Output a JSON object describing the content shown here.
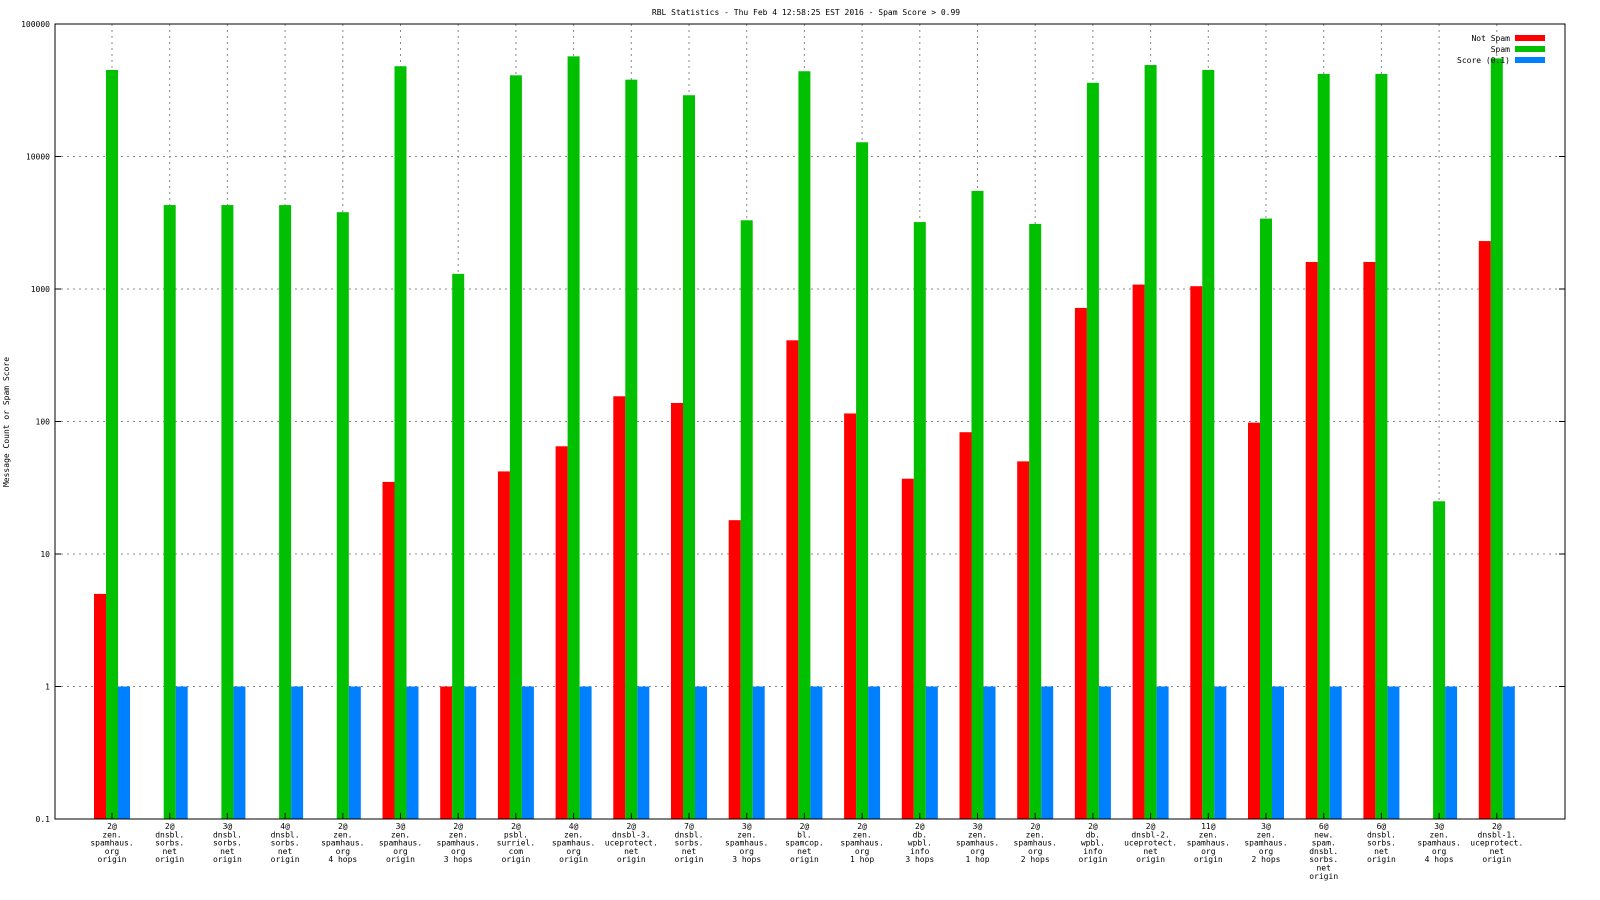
{
  "chart_data": {
    "type": "bar",
    "title": "RBL Statistics - Thu Feb  4 12:58:25 EST 2016 - Spam Score > 0.99",
    "ylabel": "Message Count or Spam Score",
    "xlabel": "",
    "yscale": "log",
    "ylim": [
      0.1,
      100000
    ],
    "yticks": [
      "0.1",
      "1",
      "10",
      "100",
      "1000",
      "10000",
      "100000"
    ],
    "grid": true,
    "legend_position": "top-right",
    "categories": [
      [
        "2@",
        "zen.",
        "spamhaus.",
        "org",
        "origin"
      ],
      [
        "2@",
        "dnsbl.",
        "sorbs.",
        "net",
        "origin"
      ],
      [
        "3@",
        "dnsbl.",
        "sorbs.",
        "net",
        "origin"
      ],
      [
        "4@",
        "dnsbl.",
        "sorbs.",
        "net",
        "origin"
      ],
      [
        "2@",
        "zen.",
        "spamhaus.",
        "org",
        "4 hops"
      ],
      [
        "3@",
        "zen.",
        "spamhaus.",
        "org",
        "origin"
      ],
      [
        "2@",
        "zen.",
        "spamhaus.",
        "org",
        "3 hops"
      ],
      [
        "2@",
        "psbl.",
        "surriel.",
        "com",
        "origin"
      ],
      [
        "4@",
        "zen.",
        "spamhaus.",
        "org",
        "origin"
      ],
      [
        "2@",
        "dnsbl-3.",
        "uceprotect.",
        "net",
        "origin"
      ],
      [
        "7@",
        "dnsbl.",
        "sorbs.",
        "net",
        "origin"
      ],
      [
        "3@",
        "zen.",
        "spamhaus.",
        "org",
        "3 hops"
      ],
      [
        "2@",
        "bl.",
        "spamcop.",
        "net",
        "origin"
      ],
      [
        "2@",
        "zen.",
        "spamhaus.",
        "org",
        "1 hop"
      ],
      [
        "2@",
        "db.",
        "wpbl.",
        "info",
        "3 hops"
      ],
      [
        "3@",
        "zen.",
        "spamhaus.",
        "org",
        "1 hop"
      ],
      [
        "2@",
        "zen.",
        "spamhaus.",
        "org",
        "2 hops"
      ],
      [
        "2@",
        "db.",
        "wpbl.",
        "info",
        "origin"
      ],
      [
        "2@",
        "dnsbl-2.",
        "uceprotect.",
        "net",
        "origin"
      ],
      [
        "11@",
        "zen.",
        "spamhaus.",
        "org",
        "origin"
      ],
      [
        "3@",
        "zen.",
        "spamhaus.",
        "org",
        "2 hops"
      ],
      [
        "6@",
        "new.",
        "spam.",
        "dnsbl.",
        "sorbs.",
        "net",
        "origin"
      ],
      [
        "6@",
        "dnsbl.",
        "sorbs.",
        "net",
        "origin"
      ],
      [
        "3@",
        "zen.",
        "spamhaus.",
        "org",
        "4 hops"
      ],
      [
        "2@",
        "dnsbl-1.",
        "uceprotect.",
        "net",
        "origin"
      ]
    ],
    "series": [
      {
        "name": "Not Spam",
        "color": "#ff0000",
        "values": [
          5,
          0,
          0,
          0,
          0,
          35,
          1,
          42,
          65,
          155,
          138,
          18,
          410,
          115,
          37,
          83,
          50,
          720,
          1080,
          1050,
          98,
          1600,
          1600,
          0,
          2300
        ]
      },
      {
        "name": "Spam",
        "color": "#00c000",
        "values": [
          45000,
          4300,
          4300,
          4300,
          3800,
          48000,
          1300,
          41000,
          57000,
          38000,
          29000,
          3300,
          44000,
          12800,
          3200,
          5500,
          3100,
          36000,
          49000,
          45000,
          3400,
          42000,
          42000,
          25,
          55000
        ]
      },
      {
        "name": "Score (0.1)",
        "color": "#0080ff",
        "values": [
          1,
          1,
          1,
          1,
          1,
          1,
          1,
          1,
          1,
          1,
          1,
          1,
          1,
          1,
          1,
          1,
          1,
          1,
          1,
          1,
          1,
          1,
          1,
          1,
          1
        ]
      }
    ]
  }
}
